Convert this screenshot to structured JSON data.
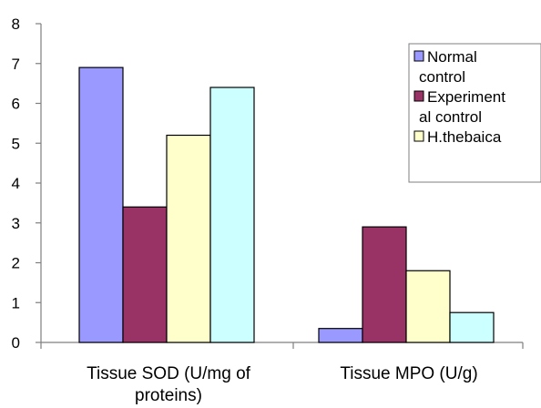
{
  "chart_data": {
    "type": "bar",
    "categories": [
      [
        "Tissue SOD (U/mg of",
        "proteins)"
      ],
      [
        "Tissue MPO (U/g)"
      ]
    ],
    "series": [
      {
        "name": "Normal control",
        "legend_lines": [
          "Normal",
          "control"
        ],
        "color": "#9999ff",
        "values": [
          6.9,
          0.35
        ]
      },
      {
        "name": "Experimental control",
        "legend_lines": [
          "Experiment",
          "al control"
        ],
        "color": "#993366",
        "values": [
          3.4,
          2.9
        ]
      },
      {
        "name": "H.thebaica",
        "legend_lines": [
          "H.thebaica"
        ],
        "color": "#ffffcc",
        "values": [
          5.2,
          1.8
        ]
      },
      {
        "name": "",
        "legend_lines": [],
        "color": "#ccffff",
        "values": [
          6.4,
          0.75
        ]
      }
    ],
    "ylim": [
      0,
      8
    ],
    "yticks": [
      0,
      1,
      2,
      3,
      4,
      5,
      6,
      7,
      8
    ],
    "title": "",
    "xlabel": "",
    "ylabel": "",
    "grid": false,
    "legend_position": "right"
  }
}
